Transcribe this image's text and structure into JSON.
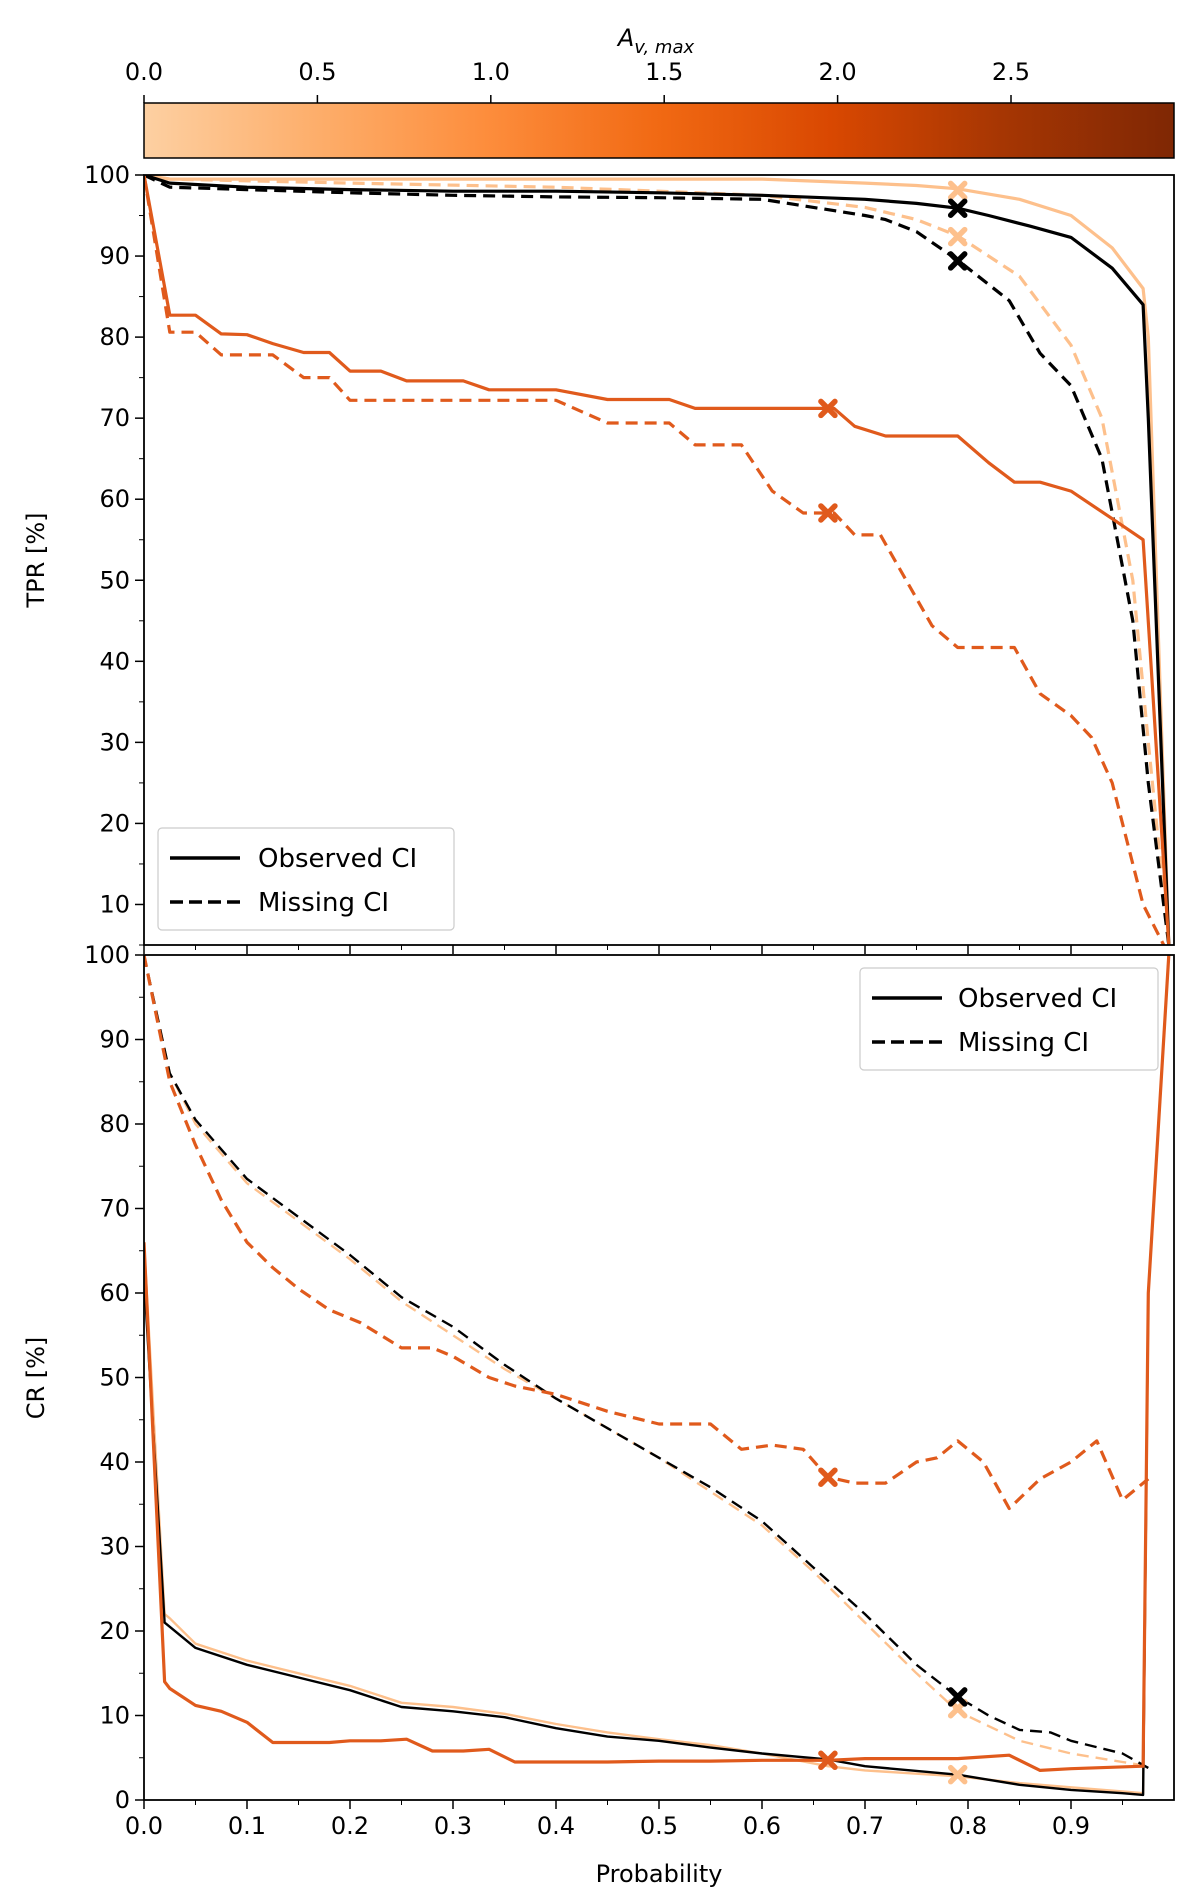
{
  "colorbar": {
    "label": "A_v,max",
    "label_main": "A",
    "label_sub": "v, max",
    "ticks": [
      "0.0",
      "0.5",
      "1.0",
      "1.5",
      "2.0",
      "2.5"
    ],
    "tick_values": [
      0.0,
      0.5,
      1.0,
      1.5,
      2.0,
      2.5
    ],
    "range": [
      0,
      2.97
    ],
    "colors": [
      "#fdd0a2",
      "#fdae6b",
      "#fd8d3c",
      "#f16913",
      "#d94801",
      "#a63603",
      "#7f2704"
    ]
  },
  "series_colors": {
    "black": "#000000",
    "light": "#fdc08c",
    "dark": "#e05a1c"
  },
  "xaxis": {
    "label": "Probability",
    "ticks": [
      "0.0",
      "0.1",
      "0.2",
      "0.3",
      "0.4",
      "0.5",
      "0.6",
      "0.7",
      "0.8",
      "0.9"
    ],
    "tick_values": [
      0.0,
      0.1,
      0.2,
      0.3,
      0.4,
      0.5,
      0.6,
      0.7,
      0.8,
      0.9
    ],
    "range": [
      0,
      1
    ]
  },
  "chart_data": [
    {
      "type": "line",
      "ylabel": "TPR [%]",
      "ylim": [
        5,
        100
      ],
      "yticks": [
        "10",
        "20",
        "30",
        "40",
        "50",
        "60",
        "70",
        "80",
        "90",
        "100"
      ],
      "ytick_values": [
        10,
        20,
        30,
        40,
        50,
        60,
        70,
        80,
        90,
        100
      ],
      "legend": {
        "position": "lower-left",
        "entries": [
          "Observed CI",
          "Missing CI"
        ]
      },
      "series": [
        {
          "name": "A_v,max 0.0 Observed",
          "color": "light",
          "style": "solid",
          "x": [
            0,
            0.025,
            0.1,
            0.3,
            0.5,
            0.6,
            0.7,
            0.75,
            0.79,
            0.85,
            0.9,
            0.94,
            0.97,
            0.975,
            0.995
          ],
          "y": [
            100,
            99.5,
            99.5,
            99.5,
            99.5,
            99.5,
            99,
            98.7,
            98.3,
            97,
            95,
            91,
            86,
            80,
            5
          ]
        },
        {
          "name": "A_v,max 0.0 Missing",
          "color": "light",
          "style": "dashed",
          "x": [
            0,
            0.025,
            0.2,
            0.4,
            0.6,
            0.7,
            0.75,
            0.79,
            0.85,
            0.9,
            0.93,
            0.96,
            0.975,
            0.995
          ],
          "y": [
            100,
            99.5,
            99,
            98.5,
            97.5,
            96,
            94.5,
            92.5,
            87.5,
            79,
            70,
            50,
            30,
            5
          ]
        },
        {
          "name": "Black Observed",
          "color": "black",
          "style": "solid",
          "x": [
            0,
            0.025,
            0.1,
            0.2,
            0.3,
            0.4,
            0.5,
            0.6,
            0.7,
            0.75,
            0.79,
            0.82,
            0.86,
            0.9,
            0.94,
            0.97,
            0.975,
            0.995
          ],
          "y": [
            100,
            99,
            98.5,
            98.2,
            98,
            98,
            97.8,
            97.5,
            97,
            96.5,
            95.9,
            95,
            93.7,
            92.3,
            88.5,
            84,
            70,
            5
          ]
        },
        {
          "name": "Black Missing",
          "color": "black",
          "style": "dashed",
          "x": [
            0,
            0.025,
            0.1,
            0.2,
            0.3,
            0.4,
            0.5,
            0.6,
            0.65,
            0.7,
            0.72,
            0.75,
            0.79,
            0.82,
            0.84,
            0.87,
            0.9,
            0.93,
            0.96,
            0.975,
            0.995
          ],
          "y": [
            100,
            98.5,
            98.2,
            97.8,
            97.5,
            97.3,
            97.2,
            97,
            96,
            95,
            94.5,
            93,
            89.5,
            86.5,
            84.5,
            78,
            74,
            65,
            45,
            25,
            5
          ]
        },
        {
          "name": "A_v,max 2.0 Observed",
          "color": "dark",
          "style": "solid",
          "x": [
            0,
            0.025,
            0.05,
            0.075,
            0.1,
            0.125,
            0.155,
            0.18,
            0.2,
            0.23,
            0.255,
            0.28,
            0.31,
            0.335,
            0.4,
            0.45,
            0.51,
            0.535,
            0.6,
            0.67,
            0.69,
            0.72,
            0.79,
            0.82,
            0.845,
            0.87,
            0.9,
            0.94,
            0.97,
            0.995
          ],
          "y": [
            100,
            82.7,
            82.7,
            80.4,
            80.3,
            79.2,
            78.1,
            78.1,
            75.8,
            75.8,
            74.6,
            74.6,
            74.6,
            73.5,
            73.5,
            72.3,
            72.3,
            71.2,
            71.2,
            71.2,
            69,
            67.8,
            67.8,
            64.5,
            62.1,
            62.1,
            61,
            57.6,
            55,
            5
          ]
        },
        {
          "name": "A_v,max 2.0 Missing",
          "color": "dark",
          "style": "dashed",
          "x": [
            0,
            0.025,
            0.05,
            0.075,
            0.125,
            0.155,
            0.18,
            0.2,
            0.4,
            0.45,
            0.51,
            0.535,
            0.58,
            0.61,
            0.64,
            0.67,
            0.69,
            0.715,
            0.74,
            0.765,
            0.79,
            0.845,
            0.87,
            0.9,
            0.92,
            0.94,
            0.97,
            0.99
          ],
          "y": [
            100,
            80.6,
            80.6,
            77.8,
            77.8,
            75,
            75,
            72.2,
            72.2,
            69.4,
            69.4,
            66.7,
            66.7,
            61,
            58.3,
            58.3,
            55.6,
            55.6,
            50,
            44.4,
            41.7,
            41.7,
            36,
            33.3,
            30.6,
            25,
            10,
            5
          ]
        }
      ],
      "markers": [
        {
          "x": 0.79,
          "y": 98.1,
          "color": "light"
        },
        {
          "x": 0.79,
          "y": 92.4,
          "color": "light"
        },
        {
          "x": 0.79,
          "y": 95.9,
          "color": "black"
        },
        {
          "x": 0.79,
          "y": 89.4,
          "color": "black"
        },
        {
          "x": 0.664,
          "y": 71.2,
          "color": "dark"
        },
        {
          "x": 0.664,
          "y": 58.3,
          "color": "dark"
        }
      ]
    },
    {
      "type": "line",
      "ylabel": "CR [%]",
      "ylim": [
        0,
        100
      ],
      "yticks": [
        "0",
        "10",
        "20",
        "30",
        "40",
        "50",
        "60",
        "70",
        "80",
        "90",
        "100"
      ],
      "ytick_values": [
        0,
        10,
        20,
        30,
        40,
        50,
        60,
        70,
        80,
        90,
        100
      ],
      "legend": {
        "position": "upper-right",
        "entries": [
          "Observed CI",
          "Missing CI"
        ]
      },
      "series": [
        {
          "name": "A_v,max 0.0 Missing",
          "color": "light",
          "style": "dashed",
          "x": [
            0,
            0.025,
            0.05,
            0.1,
            0.15,
            0.2,
            0.25,
            0.3,
            0.35,
            0.4,
            0.45,
            0.5,
            0.55,
            0.6,
            0.65,
            0.7,
            0.75,
            0.79,
            0.85,
            0.9,
            0.95,
            0.975
          ],
          "y": [
            100,
            86,
            80,
            73,
            68.5,
            64,
            59,
            55,
            51,
            47.5,
            44,
            40.5,
            36.5,
            32.5,
            27,
            21,
            15,
            10.5,
            7,
            5.5,
            4.5,
            4
          ]
        },
        {
          "name": "Black Missing",
          "color": "black",
          "style": "dashed",
          "x": [
            0,
            0.025,
            0.05,
            0.1,
            0.15,
            0.2,
            0.25,
            0.3,
            0.35,
            0.4,
            0.45,
            0.5,
            0.55,
            0.6,
            0.65,
            0.7,
            0.75,
            0.79,
            0.82,
            0.85,
            0.88,
            0.9,
            0.95,
            0.975
          ],
          "y": [
            100,
            86,
            80.5,
            73.5,
            69,
            64.5,
            59.5,
            56,
            51.5,
            47.5,
            44,
            40.5,
            37,
            33,
            27.5,
            22,
            16,
            12.2,
            10,
            8.3,
            8,
            7,
            5.5,
            3.8
          ]
        },
        {
          "name": "A_v,max 2.0 Missing",
          "color": "dark",
          "style": "dashed",
          "x": [
            0,
            0.025,
            0.05,
            0.075,
            0.1,
            0.125,
            0.15,
            0.18,
            0.21,
            0.25,
            0.28,
            0.3,
            0.335,
            0.36,
            0.4,
            0.45,
            0.5,
            0.55,
            0.58,
            0.61,
            0.64,
            0.664,
            0.69,
            0.72,
            0.75,
            0.77,
            0.79,
            0.815,
            0.84,
            0.87,
            0.9,
            0.925,
            0.95,
            0.975
          ],
          "y": [
            100,
            85,
            77.5,
            71,
            66,
            63,
            60.5,
            58,
            56.5,
            53.5,
            53.5,
            52.5,
            50,
            49,
            48,
            46,
            44.5,
            44.5,
            41.5,
            42,
            41.5,
            38.2,
            37.5,
            37.5,
            40,
            40.5,
            42.5,
            40,
            34.5,
            38,
            40,
            42.5,
            35.5,
            38
          ]
        },
        {
          "name": "A_v,max 0.0 Observed",
          "color": "light",
          "style": "solid",
          "x": [
            0,
            0.02,
            0.025,
            0.05,
            0.1,
            0.15,
            0.2,
            0.25,
            0.3,
            0.35,
            0.4,
            0.45,
            0.5,
            0.55,
            0.6,
            0.664,
            0.7,
            0.79,
            0.85,
            0.9,
            0.95,
            0.97,
            0.975,
            0.995
          ],
          "y": [
            66,
            22,
            21.5,
            18.5,
            16.5,
            15,
            13.5,
            11.5,
            11,
            10.2,
            9,
            8,
            7.2,
            6.5,
            5.5,
            4,
            3.5,
            2.8,
            2,
            1.5,
            1,
            0.8,
            60,
            100
          ]
        },
        {
          "name": "Black Observed",
          "color": "black",
          "style": "solid",
          "x": [
            0,
            0.02,
            0.025,
            0.05,
            0.1,
            0.15,
            0.2,
            0.25,
            0.3,
            0.35,
            0.4,
            0.45,
            0.5,
            0.55,
            0.6,
            0.664,
            0.7,
            0.79,
            0.85,
            0.9,
            0.95,
            0.97,
            0.975,
            0.995
          ],
          "y": [
            62,
            21,
            20.5,
            18,
            16,
            14.5,
            13,
            11,
            10.5,
            9.8,
            8.5,
            7.5,
            7,
            6.2,
            5.5,
            4.8,
            4,
            3,
            1.8,
            1.2,
            0.8,
            0.6,
            60,
            100
          ]
        },
        {
          "name": "A_v,max 2.0 Observed",
          "color": "dark",
          "style": "solid",
          "x": [
            0,
            0.02,
            0.025,
            0.05,
            0.075,
            0.1,
            0.125,
            0.155,
            0.18,
            0.2,
            0.23,
            0.255,
            0.28,
            0.31,
            0.335,
            0.36,
            0.4,
            0.45,
            0.5,
            0.55,
            0.6,
            0.664,
            0.7,
            0.79,
            0.84,
            0.87,
            0.9,
            0.97,
            0.975,
            0.995
          ],
          "y": [
            66,
            14,
            13.2,
            11.2,
            10.5,
            9.2,
            6.8,
            6.8,
            6.8,
            7,
            7,
            7.2,
            5.8,
            5.8,
            6,
            4.5,
            4.5,
            4.5,
            4.6,
            4.6,
            4.7,
            4.7,
            4.9,
            4.9,
            5.3,
            3.5,
            3.7,
            4,
            60,
            100
          ]
        }
      ],
      "markers": [
        {
          "x": 0.79,
          "y": 10.8,
          "color": "light"
        },
        {
          "x": 0.79,
          "y": 3,
          "color": "light"
        },
        {
          "x": 0.79,
          "y": 12.2,
          "color": "black"
        },
        {
          "x": 0.664,
          "y": 38.2,
          "color": "dark"
        },
        {
          "x": 0.664,
          "y": 4.7,
          "color": "dark"
        }
      ]
    }
  ]
}
